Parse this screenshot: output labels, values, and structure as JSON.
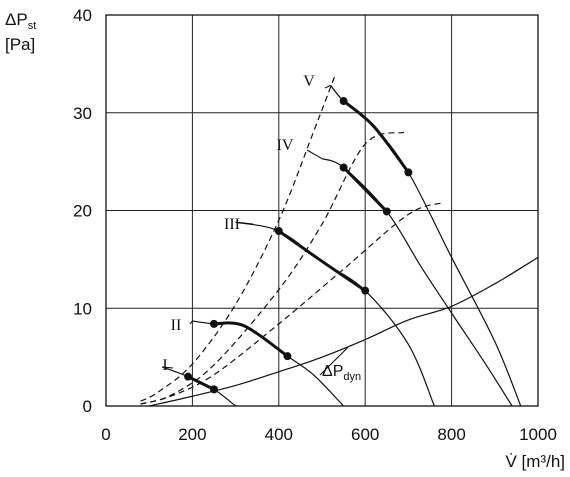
{
  "chart_data": {
    "type": "line",
    "title": "",
    "xlabel": "V̇ [m³/h]",
    "ylabel": [
      "ΔP",
      "st",
      "[Pa]"
    ],
    "xlim": [
      0,
      1000
    ],
    "ylim": [
      0,
      40
    ],
    "xticks": [
      0,
      200,
      400,
      600,
      800,
      1000
    ],
    "yticks": [
      0,
      10,
      20,
      30,
      40
    ],
    "grid": true,
    "fan_curves": [
      {
        "label": "I",
        "points": [
          [
            130,
            4
          ],
          [
            190,
            3
          ],
          [
            250,
            1.7
          ],
          [
            300,
            0
          ]
        ],
        "operating_range": [
          [
            190,
            3
          ],
          [
            250,
            1.7
          ]
        ]
      },
      {
        "label": "II",
        "points": [
          [
            200,
            8.7
          ],
          [
            250,
            8.4
          ],
          [
            320,
            8.2
          ],
          [
            420,
            5.1
          ],
          [
            480,
            3.2
          ],
          [
            550,
            0
          ]
        ],
        "operating_range": [
          [
            250,
            8.4
          ],
          [
            320,
            8.2
          ],
          [
            420,
            5.1
          ]
        ]
      },
      {
        "label": "III",
        "points": [
          [
            300,
            18.8
          ],
          [
            400,
            17.9
          ],
          [
            500,
            14.8
          ],
          [
            600,
            11.8
          ],
          [
            700,
            6.3
          ],
          [
            760,
            0
          ]
        ],
        "operating_range": [
          [
            400,
            17.9
          ],
          [
            500,
            14.8
          ],
          [
            600,
            11.8
          ]
        ]
      },
      {
        "label": "IV",
        "points": [
          [
            500,
            25.3
          ],
          [
            550,
            24.4
          ],
          [
            650,
            19.9
          ],
          [
            730,
            14.2
          ],
          [
            800,
            9.5
          ],
          [
            880,
            4.2
          ],
          [
            940,
            0
          ]
        ],
        "operating_range": [
          [
            550,
            24.4
          ],
          [
            650,
            19.9
          ]
        ]
      },
      {
        "label": "V",
        "points": [
          [
            520,
            32.8
          ],
          [
            550,
            31.2
          ],
          [
            620,
            28.6
          ],
          [
            700,
            23.9
          ],
          [
            800,
            15.2
          ],
          [
            900,
            6.6
          ],
          [
            960,
            0
          ]
        ],
        "operating_range": [
          [
            550,
            31.2
          ],
          [
            620,
            28.6
          ],
          [
            700,
            23.9
          ]
        ]
      }
    ],
    "system_curves": [
      [
        [
          80,
          0.5
        ],
        [
          120,
          1.4
        ],
        [
          200,
          4.3
        ],
        [
          300,
          10.4
        ],
        [
          400,
          19.0
        ],
        [
          480,
          28.0
        ],
        [
          530,
          33.8
        ]
      ],
      [
        [
          80,
          0.2
        ],
        [
          150,
          1.1
        ],
        [
          250,
          4.2
        ],
        [
          400,
          11.9
        ],
        [
          500,
          18.6
        ],
        [
          600,
          26.8
        ],
        [
          690,
          28.0
        ]
      ],
      [
        [
          80,
          0.2
        ],
        [
          150,
          1.0
        ],
        [
          250,
          3.2
        ],
        [
          400,
          8.4
        ],
        [
          550,
          14.0
        ],
        [
          700,
          19.6
        ],
        [
          780,
          20.8
        ]
      ]
    ],
    "dynamic_pressure_curve": {
      "label": [
        "ΔP",
        "dyn"
      ],
      "points": [
        [
          100,
          0
        ],
        [
          200,
          1.0
        ],
        [
          300,
          2.1
        ],
        [
          400,
          3.5
        ],
        [
          500,
          5.0
        ],
        [
          600,
          6.8
        ],
        [
          700,
          8.8
        ],
        [
          800,
          10.2
        ],
        [
          900,
          12.5
        ],
        [
          1000,
          15.2
        ]
      ]
    }
  }
}
